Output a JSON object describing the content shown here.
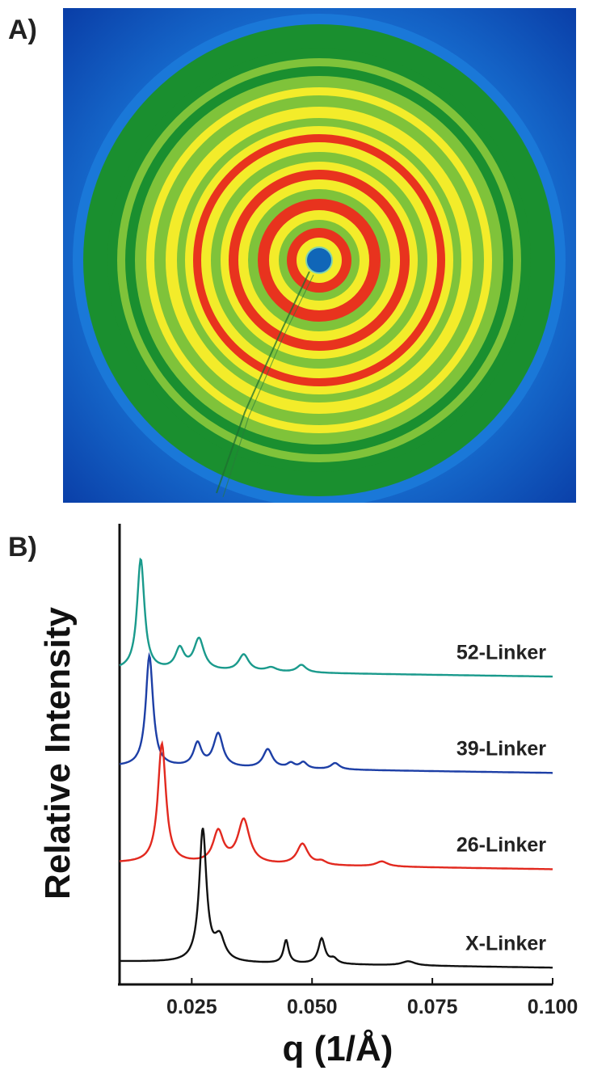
{
  "panels": {
    "a_label": "A)",
    "b_label": "B)"
  },
  "colors": {
    "background": "#ffffff",
    "axis": "#111111",
    "pattern_outer": "#0a3fa8",
    "pattern_blue": "#1a78d8",
    "pattern_green_dark": "#1a8f2f",
    "pattern_green": "#7fc33a",
    "pattern_yellow": "#f3ec2a",
    "pattern_red": "#e8331e",
    "pattern_center": "#1066b8"
  },
  "chart_data": {
    "type": "line",
    "xlabel": "q (1/Å)",
    "ylabel": "Relative Intensity",
    "xlim": [
      0.01,
      0.1
    ],
    "ylim": [
      0,
      11
    ],
    "x_ticks": [
      0.025,
      0.05,
      0.075,
      0.1
    ],
    "x_tick_labels": [
      "0.025",
      "0.050",
      "0.075",
      "0.100"
    ],
    "grid": false,
    "series": [
      {
        "name": "52-Linker",
        "color": "#1a9a8c",
        "baseline": 7.5,
        "peaks": [
          {
            "q": 0.0144,
            "h": 2.65,
            "w": 0.001
          },
          {
            "q": 0.0225,
            "h": 0.5,
            "w": 0.0012
          },
          {
            "q": 0.0265,
            "h": 0.75,
            "w": 0.0014
          },
          {
            "q": 0.0358,
            "h": 0.4,
            "w": 0.0014
          },
          {
            "q": 0.0415,
            "h": 0.1,
            "w": 0.0015
          },
          {
            "q": 0.0478,
            "h": 0.18,
            "w": 0.0013
          }
        ]
      },
      {
        "name": "39-Linker",
        "color": "#1d3fa6",
        "baseline": 5.2,
        "peaks": [
          {
            "q": 0.0162,
            "h": 2.65,
            "w": 0.001
          },
          {
            "q": 0.0262,
            "h": 0.55,
            "w": 0.0011
          },
          {
            "q": 0.0305,
            "h": 0.8,
            "w": 0.0013
          },
          {
            "q": 0.0408,
            "h": 0.45,
            "w": 0.0013
          },
          {
            "q": 0.0456,
            "h": 0.12,
            "w": 0.001
          },
          {
            "q": 0.0482,
            "h": 0.15,
            "w": 0.001
          },
          {
            "q": 0.0548,
            "h": 0.15,
            "w": 0.0012
          }
        ]
      },
      {
        "name": "26-Linker",
        "color": "#e2291f",
        "baseline": 2.9,
        "peaks": [
          {
            "q": 0.0188,
            "h": 2.85,
            "w": 0.0011
          },
          {
            "q": 0.0305,
            "h": 0.75,
            "w": 0.0014
          },
          {
            "q": 0.0358,
            "h": 1.05,
            "w": 0.0016
          },
          {
            "q": 0.048,
            "h": 0.5,
            "w": 0.0015
          },
          {
            "q": 0.052,
            "h": 0.08,
            "w": 0.0012
          },
          {
            "q": 0.0645,
            "h": 0.12,
            "w": 0.0016
          }
        ]
      },
      {
        "name": "X-Linker",
        "color": "#111111",
        "baseline": 0.55,
        "peaks": [
          {
            "q": 0.0273,
            "h": 3.15,
            "w": 0.001
          },
          {
            "q": 0.0308,
            "h": 0.55,
            "w": 0.0014
          },
          {
            "q": 0.0446,
            "h": 0.55,
            "w": 0.0007
          },
          {
            "q": 0.052,
            "h": 0.6,
            "w": 0.0009
          },
          {
            "q": 0.0545,
            "h": 0.12,
            "w": 0.001
          },
          {
            "q": 0.07,
            "h": 0.1,
            "w": 0.0018
          }
        ]
      }
    ]
  }
}
